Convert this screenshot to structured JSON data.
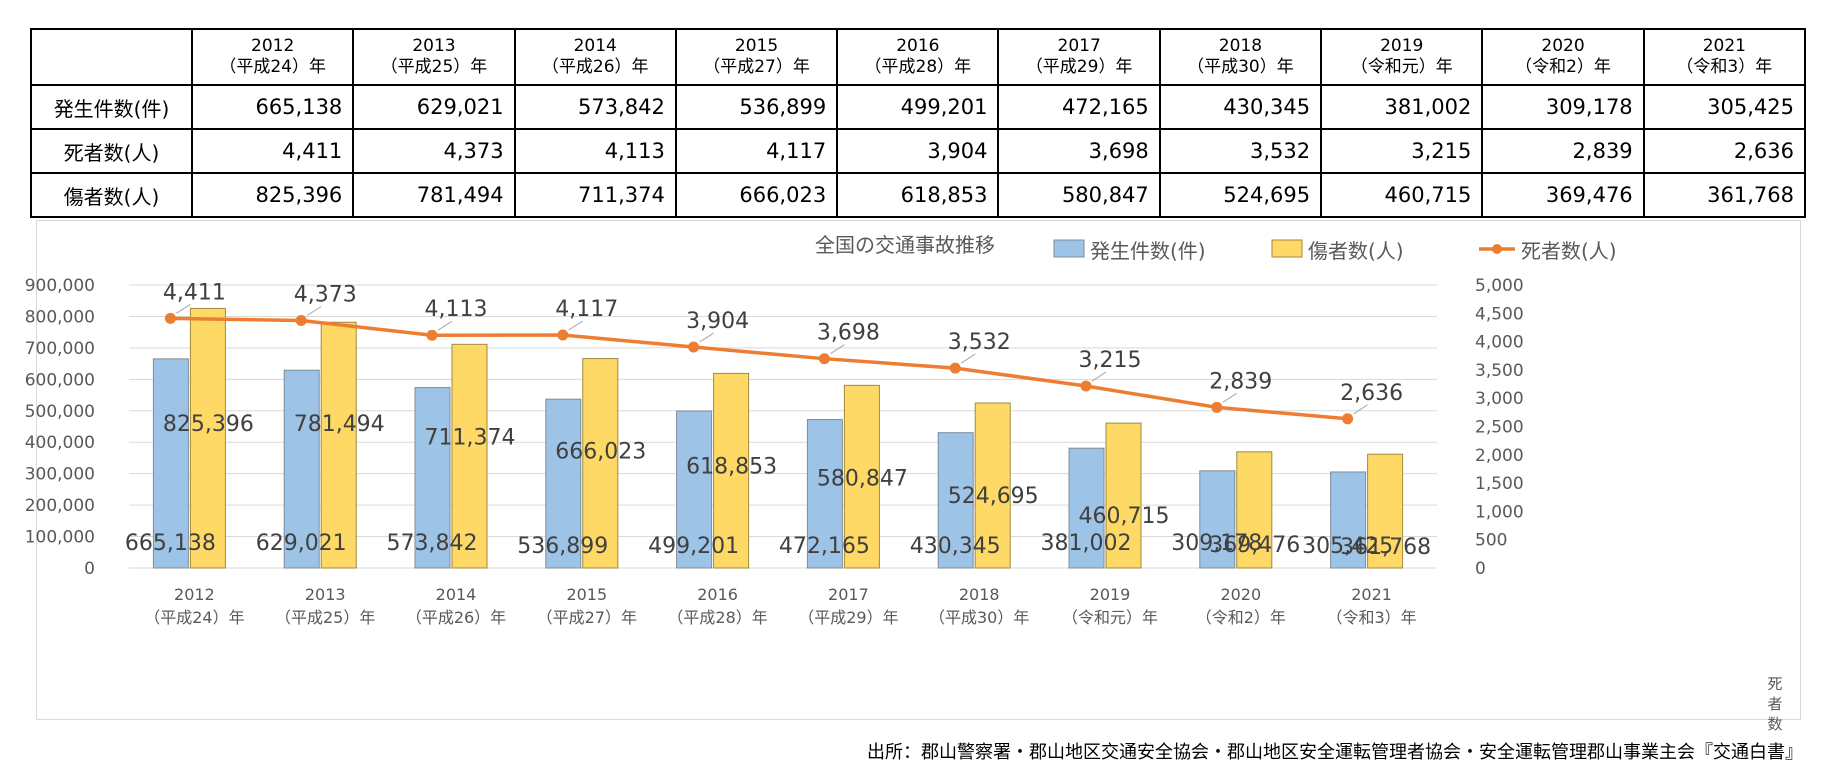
{
  "table": {
    "years": [
      {
        "year": "2012",
        "era": "（平成24）年"
      },
      {
        "year": "2013",
        "era": "（平成25）年"
      },
      {
        "year": "2014",
        "era": "（平成26）年"
      },
      {
        "year": "2015",
        "era": "（平成27）年"
      },
      {
        "year": "2016",
        "era": "（平成28）年"
      },
      {
        "year": "2017",
        "era": "（平成29）年"
      },
      {
        "year": "2018",
        "era": "（平成30）年"
      },
      {
        "year": "2019",
        "era": "（令和元）年"
      },
      {
        "year": "2020",
        "era": "（令和2）年"
      },
      {
        "year": "2021",
        "era": "（令和3）年"
      }
    ],
    "rows": [
      {
        "label": "発生件数(件)",
        "values": [
          "665,138",
          "629,021",
          "573,842",
          "536,899",
          "499,201",
          "472,165",
          "430,345",
          "381,002",
          "309,178",
          "305,425"
        ]
      },
      {
        "label": "死者数(人)",
        "values": [
          "4,411",
          "4,373",
          "4,113",
          "4,117",
          "3,904",
          "3,698",
          "3,532",
          "3,215",
          "2,839",
          "2,636"
        ]
      },
      {
        "label": "傷者数(人)",
        "values": [
          "825,396",
          "781,494",
          "711,374",
          "666,023",
          "618,853",
          "580,847",
          "524,695",
          "460,715",
          "369,476",
          "361,768"
        ]
      }
    ]
  },
  "chart_data": {
    "type": "bar",
    "title": "全国の交通事故推移",
    "categories": [
      {
        "year": "2012",
        "era": "（平成24）年"
      },
      {
        "year": "2013",
        "era": "（平成25）年"
      },
      {
        "year": "2014",
        "era": "（平成26）年"
      },
      {
        "year": "2015",
        "era": "（平成27）年"
      },
      {
        "year": "2016",
        "era": "（平成28）年"
      },
      {
        "year": "2017",
        "era": "（平成29）年"
      },
      {
        "year": "2018",
        "era": "（平成30）年"
      },
      {
        "year": "2019",
        "era": "（令和元）年"
      },
      {
        "year": "2020",
        "era": "（令和2）年"
      },
      {
        "year": "2021",
        "era": "（令和3）年"
      }
    ],
    "series": [
      {
        "name": "発生件数(件)",
        "kind": "bar",
        "axis": "left",
        "color": "#9dc3e6",
        "values": [
          665138,
          629021,
          573842,
          536899,
          499201,
          472165,
          430345,
          381002,
          309178,
          305425
        ],
        "labels": [
          "665,138",
          "629,021",
          "573,842",
          "536,899",
          "499,201",
          "472,165",
          "430,345",
          "381,002",
          "309,178",
          "305,425"
        ]
      },
      {
        "name": "傷者数(人)",
        "kind": "bar",
        "axis": "left",
        "color": "#ffd966",
        "values": [
          825396,
          781494,
          711374,
          666023,
          618853,
          580847,
          524695,
          460715,
          369476,
          361768
        ],
        "labels": [
          "825,396",
          "781,494",
          "711,374",
          "666,023",
          "618,853",
          "580,847",
          "524,695",
          "460,715",
          "369,476",
          "361,768"
        ]
      },
      {
        "name": "死者数(人)",
        "kind": "line",
        "axis": "right",
        "color": "#ed7d31",
        "values": [
          4411,
          4373,
          4113,
          4117,
          3904,
          3698,
          3532,
          3215,
          2839,
          2636
        ],
        "labels": [
          "4,411",
          "4,373",
          "4,113",
          "4,117",
          "3,904",
          "3,698",
          "3,532",
          "3,215",
          "2,839",
          "2,636"
        ]
      }
    ],
    "left_axis": {
      "min": 0,
      "max": 900000,
      "step": 100000,
      "tick_labels": [
        "0",
        "100,000",
        "200,000",
        "300,000",
        "400,000",
        "500,000",
        "600,000",
        "700,000",
        "800,000",
        "900,000"
      ]
    },
    "right_axis": {
      "min": 0,
      "max": 5000,
      "step": 500,
      "label": "死者数",
      "tick_labels": [
        "0",
        "500",
        "1,000",
        "1,500",
        "2,000",
        "2,500",
        "3,000",
        "3,500",
        "4,000",
        "4,500",
        "5,000"
      ]
    },
    "legend_position": "top-right",
    "grid": true
  },
  "source": "出所：郡山警察署・郡山地区交通安全協会・郡山地区安全運転管理者協会・安全運転管理郡山事業主会『交通白書』"
}
